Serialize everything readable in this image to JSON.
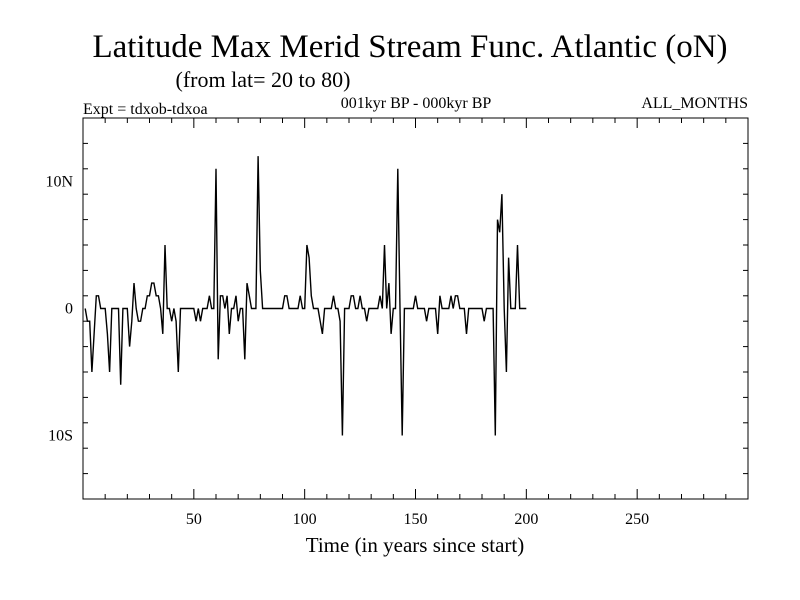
{
  "chart_data": {
    "type": "line",
    "title": "Latitude Max Merid Stream Func. Atlantic (oN)",
    "subtitle": "(from lat= 20 to 80)",
    "left_label": "Expt = tdxob-tdxoa",
    "center_label": "001kyr BP - 000kyr BP",
    "right_label": "ALL_MONTHS",
    "xlabel": "Time (in years since start)",
    "ylabel": "",
    "xlim": [
      0,
      300
    ],
    "ylim": [
      -15,
      15
    ],
    "x_ticks": [
      {
        "value": 50,
        "label": "50"
      },
      {
        "value": 100,
        "label": "100"
      },
      {
        "value": 150,
        "label": "150"
      },
      {
        "value": 200,
        "label": "200"
      },
      {
        "value": 250,
        "label": "250"
      }
    ],
    "y_ticks": [
      {
        "value": 10,
        "label": "10N"
      },
      {
        "value": 0,
        "label": "0"
      },
      {
        "value": -10,
        "label": "10S"
      }
    ],
    "x_minor_step": 10,
    "y_minor_step": 2,
    "grid": false,
    "line_color": "#000000",
    "series": [
      {
        "x_start": 1,
        "x_step": 1,
        "values": [
          0,
          -1,
          -1,
          -5,
          -2,
          1,
          1,
          0,
          0,
          0,
          -2,
          -5,
          0,
          0,
          0,
          0,
          -6,
          0,
          0,
          0,
          -3,
          -1,
          2,
          0,
          -1,
          -1,
          0,
          0,
          1,
          1,
          2,
          2,
          1,
          1,
          0,
          -2,
          5,
          0,
          0,
          -1,
          0,
          -1,
          -5,
          0,
          0,
          0,
          0,
          0,
          0,
          0,
          -1,
          0,
          -1,
          0,
          0,
          0,
          1,
          0,
          0,
          11,
          -4,
          1,
          1,
          0,
          1,
          -2,
          0,
          0,
          1,
          -1,
          0,
          0,
          -4,
          2,
          1,
          0,
          0,
          0,
          12,
          3,
          0,
          0,
          0,
          0,
          0,
          0,
          0,
          0,
          0,
          0,
          1,
          1,
          0,
          0,
          0,
          0,
          0,
          1,
          0,
          0,
          5,
          4,
          1,
          0,
          0,
          0,
          -1,
          -2,
          0,
          0,
          0,
          0,
          1,
          0,
          0,
          -1,
          -10,
          0,
          0,
          0,
          1,
          1,
          0,
          0,
          1,
          0,
          0,
          -1,
          0,
          0,
          0,
          0,
          0,
          1,
          0,
          5,
          0,
          2,
          -2,
          0,
          0,
          11,
          0,
          -10,
          0,
          0,
          0,
          0,
          0,
          1,
          0,
          0,
          0,
          0,
          -1,
          0,
          0,
          0,
          0,
          -2,
          1,
          0,
          0,
          0,
          0,
          1,
          0,
          1,
          1,
          0,
          0,
          0,
          -2,
          0,
          0,
          0,
          0,
          0,
          0,
          0,
          -1,
          0,
          0,
          0,
          0,
          -10,
          7,
          6,
          9,
          0,
          -5,
          4,
          0,
          0,
          0,
          5,
          0,
          0,
          0,
          0
        ]
      }
    ]
  }
}
